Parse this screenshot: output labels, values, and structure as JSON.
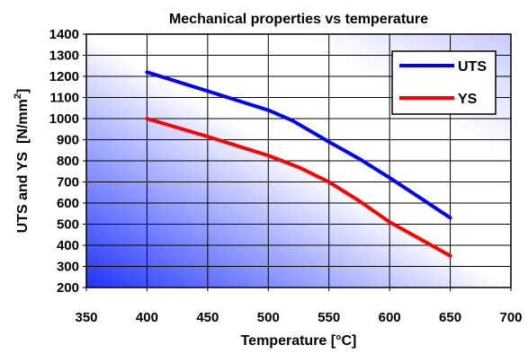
{
  "chart_data": {
    "type": "line",
    "title": "Mechanical properties vs temperature",
    "xlabel": "Temperature [°C]",
    "ylabel": "UTS and YS",
    "ylabel_unit_pre": "[N/mm",
    "ylabel_unit_sup": "2",
    "ylabel_unit_post": "]",
    "xlim": [
      350,
      700
    ],
    "ylim": [
      200,
      1400
    ],
    "x_ticks": [
      350,
      400,
      450,
      500,
      550,
      600,
      650,
      700
    ],
    "y_ticks": [
      200,
      300,
      400,
      500,
      600,
      700,
      800,
      900,
      1000,
      1100,
      1200,
      1300,
      1400
    ],
    "grid": true,
    "legend_position": "top-right",
    "series": [
      {
        "name": "UTS",
        "color": "#0000ff",
        "points": [
          [
            400,
            1220
          ],
          [
            450,
            1130
          ],
          [
            500,
            1040
          ],
          [
            520,
            990
          ],
          [
            550,
            890
          ],
          [
            575,
            810
          ],
          [
            600,
            720
          ],
          [
            625,
            625
          ],
          [
            650,
            530
          ]
        ]
      },
      {
        "name": "YS",
        "color": "#ff0000",
        "points": [
          [
            400,
            1000
          ],
          [
            450,
            915
          ],
          [
            500,
            825
          ],
          [
            525,
            770
          ],
          [
            550,
            700
          ],
          [
            575,
            610
          ],
          [
            600,
            510
          ],
          [
            625,
            430
          ],
          [
            650,
            350
          ]
        ]
      }
    ]
  }
}
